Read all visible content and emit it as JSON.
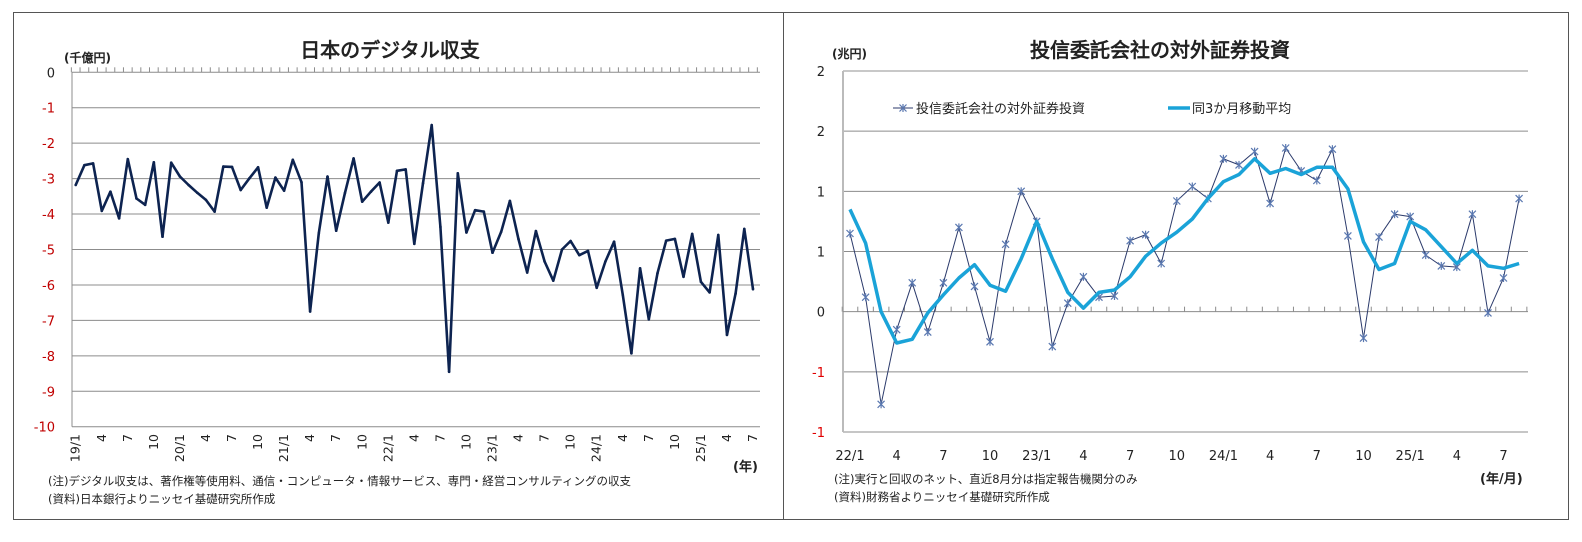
{
  "chart_data": [
    {
      "type": "line",
      "title": "日本のデジタル収支",
      "ylabel": "(千億円)",
      "xlabel": "(年)",
      "ylim": [
        -10,
        0
      ],
      "yticks": [
        "0",
        "-1",
        "-2",
        "-3",
        "-4",
        "-5",
        "-6",
        "-7",
        "-8",
        "-9",
        "-10"
      ],
      "ytick_values": [
        0,
        -1,
        -2,
        -3,
        -4,
        -5,
        -6,
        -7,
        -8,
        -9,
        -10
      ],
      "negative_tick_color": "#c00000",
      "grid": true,
      "line_color": "#0d2350",
      "x_start": "19/1",
      "xtick_labels": [
        "19/1",
        "4",
        "7",
        "10",
        "20/1",
        "4",
        "7",
        "10",
        "21/1",
        "4",
        "7",
        "10",
        "22/1",
        "4",
        "7",
        "10",
        "23/1",
        "4",
        "7",
        "10",
        "24/1",
        "4",
        "7",
        "10",
        "25/1",
        "4",
        "7"
      ],
      "series": [
        {
          "values": [
            -3.18,
            -2.62,
            -2.57,
            -3.91,
            -3.37,
            -4.12,
            -2.45,
            -3.56,
            -3.74,
            -2.54,
            -4.64,
            -2.55,
            -2.94,
            -3.18,
            -3.4,
            -3.6,
            -3.93,
            -2.66,
            -2.67,
            -3.32,
            -2.99,
            -2.68,
            -3.82,
            -2.97,
            -3.34,
            -2.47,
            -3.1,
            -6.75,
            -4.54,
            -2.94,
            -4.47,
            -3.41,
            -2.43,
            -3.65,
            -3.37,
            -3.11,
            -4.24,
            -2.78,
            -2.74,
            -4.84,
            -3.13,
            -1.49,
            -4.36,
            -8.45,
            -2.85,
            -4.52,
            -3.89,
            -3.93,
            -5.09,
            -4.5,
            -3.63,
            -4.71,
            -5.65,
            -4.48,
            -5.34,
            -5.88,
            -5.0,
            -4.76,
            -5.16,
            -5.04,
            -6.08,
            -5.34,
            -4.78,
            -6.28,
            -7.93,
            -5.53,
            -6.97,
            -5.67,
            -4.75,
            -4.7,
            -5.77,
            -4.56,
            -5.91,
            -6.21,
            -4.59,
            -7.41,
            -6.24,
            -4.42,
            -6.12
          ]
        }
      ],
      "notes": [
        "(注)デジタル収支は、著作権等使用料、通信・コンピュータ・情報サービス、専門・経営コンサルティングの収支",
        "(資料)日本銀行よりニッセイ基礎研究所作成"
      ]
    },
    {
      "type": "line",
      "title": "投信委託会社の対外証券投資",
      "ylabel": "(兆円)",
      "xlabel": "(年/月)",
      "ylim": [
        -1,
        2
      ],
      "yticks": [
        "2",
        "2",
        "1",
        "1",
        "0",
        "-1",
        "-1"
      ],
      "ytick_values": [
        2,
        1.5,
        1,
        0.5,
        0,
        -0.5,
        -1
      ],
      "negative_tick_color": "#e00000",
      "grid": true,
      "legend": "top-left",
      "x_start": "22/1",
      "xtick_labels": [
        "22/1",
        "4",
        "7",
        "10",
        "23/1",
        "4",
        "7",
        "10",
        "24/1",
        "4",
        "7",
        "10",
        "25/1",
        "4",
        "7"
      ],
      "series": [
        {
          "name": "投信委託会社の対外証券投資",
          "color": "#2b3a6b",
          "marker": "asterisk",
          "marker_color": "#5a78b0",
          "values": [
            0.65,
            0.12,
            -0.77,
            -0.15,
            0.24,
            -0.17,
            0.24,
            0.7,
            0.21,
            -0.25,
            0.56,
            1.0,
            0.75,
            -0.29,
            0.07,
            0.29,
            0.12,
            0.13,
            0.59,
            0.64,
            0.4,
            0.92,
            1.04,
            0.94,
            1.27,
            1.22,
            1.33,
            0.9,
            1.36,
            1.17,
            1.09,
            1.35,
            0.63,
            -0.22,
            0.62,
            0.81,
            0.79,
            0.47,
            0.38,
            0.37,
            0.81,
            -0.01,
            0.28,
            0.94
          ]
        },
        {
          "name": "同3か月移動平均",
          "color": "#1aa3d8",
          "values": [
            0.85,
            0.57,
            0.0,
            -0.26,
            -0.23,
            -0.01,
            0.14,
            0.28,
            0.39,
            0.22,
            0.17,
            0.44,
            0.75,
            0.44,
            0.16,
            0.03,
            0.16,
            0.18,
            0.29,
            0.46,
            0.57,
            0.66,
            0.77,
            0.94,
            1.08,
            1.14,
            1.27,
            1.15,
            1.19,
            1.14,
            1.2,
            1.2,
            1.02,
            0.58,
            0.35,
            0.4,
            0.75,
            0.68,
            0.54,
            0.4,
            0.51,
            0.38,
            0.36,
            0.4
          ]
        }
      ],
      "notes": [
        "(注)実行と回収のネット、直近8月分は指定報告機関分のみ",
        "(資料)財務省よりニッセイ基礎研究所作成"
      ]
    }
  ]
}
